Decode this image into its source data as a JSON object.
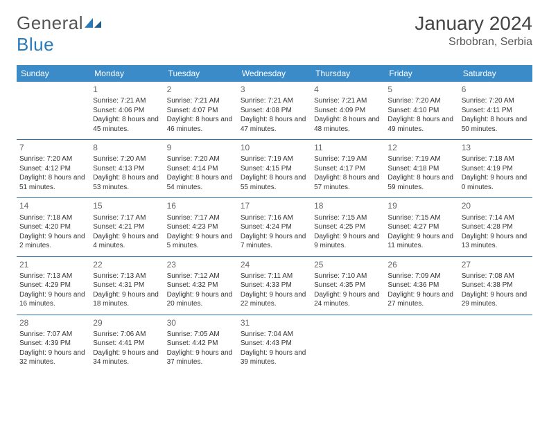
{
  "logo": {
    "word1": "General",
    "word2": "Blue"
  },
  "title": "January 2024",
  "location": "Srbobran, Serbia",
  "colors": {
    "header_bg": "#3b8bc8",
    "header_text": "#ffffff",
    "row_border": "#2a6fa3",
    "logo_gray": "#555555",
    "logo_blue": "#2a7ab8",
    "body_text": "#333333",
    "daynum": "#666666"
  },
  "weekdays": [
    "Sunday",
    "Monday",
    "Tuesday",
    "Wednesday",
    "Thursday",
    "Friday",
    "Saturday"
  ],
  "weeks": [
    [
      null,
      {
        "n": "1",
        "sr": "Sunrise: 7:21 AM",
        "ss": "Sunset: 4:06 PM",
        "dl": "Daylight: 8 hours and 45 minutes."
      },
      {
        "n": "2",
        "sr": "Sunrise: 7:21 AM",
        "ss": "Sunset: 4:07 PM",
        "dl": "Daylight: 8 hours and 46 minutes."
      },
      {
        "n": "3",
        "sr": "Sunrise: 7:21 AM",
        "ss": "Sunset: 4:08 PM",
        "dl": "Daylight: 8 hours and 47 minutes."
      },
      {
        "n": "4",
        "sr": "Sunrise: 7:21 AM",
        "ss": "Sunset: 4:09 PM",
        "dl": "Daylight: 8 hours and 48 minutes."
      },
      {
        "n": "5",
        "sr": "Sunrise: 7:20 AM",
        "ss": "Sunset: 4:10 PM",
        "dl": "Daylight: 8 hours and 49 minutes."
      },
      {
        "n": "6",
        "sr": "Sunrise: 7:20 AM",
        "ss": "Sunset: 4:11 PM",
        "dl": "Daylight: 8 hours and 50 minutes."
      }
    ],
    [
      {
        "n": "7",
        "sr": "Sunrise: 7:20 AM",
        "ss": "Sunset: 4:12 PM",
        "dl": "Daylight: 8 hours and 51 minutes."
      },
      {
        "n": "8",
        "sr": "Sunrise: 7:20 AM",
        "ss": "Sunset: 4:13 PM",
        "dl": "Daylight: 8 hours and 53 minutes."
      },
      {
        "n": "9",
        "sr": "Sunrise: 7:20 AM",
        "ss": "Sunset: 4:14 PM",
        "dl": "Daylight: 8 hours and 54 minutes."
      },
      {
        "n": "10",
        "sr": "Sunrise: 7:19 AM",
        "ss": "Sunset: 4:15 PM",
        "dl": "Daylight: 8 hours and 55 minutes."
      },
      {
        "n": "11",
        "sr": "Sunrise: 7:19 AM",
        "ss": "Sunset: 4:17 PM",
        "dl": "Daylight: 8 hours and 57 minutes."
      },
      {
        "n": "12",
        "sr": "Sunrise: 7:19 AM",
        "ss": "Sunset: 4:18 PM",
        "dl": "Daylight: 8 hours and 59 minutes."
      },
      {
        "n": "13",
        "sr": "Sunrise: 7:18 AM",
        "ss": "Sunset: 4:19 PM",
        "dl": "Daylight: 9 hours and 0 minutes."
      }
    ],
    [
      {
        "n": "14",
        "sr": "Sunrise: 7:18 AM",
        "ss": "Sunset: 4:20 PM",
        "dl": "Daylight: 9 hours and 2 minutes."
      },
      {
        "n": "15",
        "sr": "Sunrise: 7:17 AM",
        "ss": "Sunset: 4:21 PM",
        "dl": "Daylight: 9 hours and 4 minutes."
      },
      {
        "n": "16",
        "sr": "Sunrise: 7:17 AM",
        "ss": "Sunset: 4:23 PM",
        "dl": "Daylight: 9 hours and 5 minutes."
      },
      {
        "n": "17",
        "sr": "Sunrise: 7:16 AM",
        "ss": "Sunset: 4:24 PM",
        "dl": "Daylight: 9 hours and 7 minutes."
      },
      {
        "n": "18",
        "sr": "Sunrise: 7:15 AM",
        "ss": "Sunset: 4:25 PM",
        "dl": "Daylight: 9 hours and 9 minutes."
      },
      {
        "n": "19",
        "sr": "Sunrise: 7:15 AM",
        "ss": "Sunset: 4:27 PM",
        "dl": "Daylight: 9 hours and 11 minutes."
      },
      {
        "n": "20",
        "sr": "Sunrise: 7:14 AM",
        "ss": "Sunset: 4:28 PM",
        "dl": "Daylight: 9 hours and 13 minutes."
      }
    ],
    [
      {
        "n": "21",
        "sr": "Sunrise: 7:13 AM",
        "ss": "Sunset: 4:29 PM",
        "dl": "Daylight: 9 hours and 16 minutes."
      },
      {
        "n": "22",
        "sr": "Sunrise: 7:13 AM",
        "ss": "Sunset: 4:31 PM",
        "dl": "Daylight: 9 hours and 18 minutes."
      },
      {
        "n": "23",
        "sr": "Sunrise: 7:12 AM",
        "ss": "Sunset: 4:32 PM",
        "dl": "Daylight: 9 hours and 20 minutes."
      },
      {
        "n": "24",
        "sr": "Sunrise: 7:11 AM",
        "ss": "Sunset: 4:33 PM",
        "dl": "Daylight: 9 hours and 22 minutes."
      },
      {
        "n": "25",
        "sr": "Sunrise: 7:10 AM",
        "ss": "Sunset: 4:35 PM",
        "dl": "Daylight: 9 hours and 24 minutes."
      },
      {
        "n": "26",
        "sr": "Sunrise: 7:09 AM",
        "ss": "Sunset: 4:36 PM",
        "dl": "Daylight: 9 hours and 27 minutes."
      },
      {
        "n": "27",
        "sr": "Sunrise: 7:08 AM",
        "ss": "Sunset: 4:38 PM",
        "dl": "Daylight: 9 hours and 29 minutes."
      }
    ],
    [
      {
        "n": "28",
        "sr": "Sunrise: 7:07 AM",
        "ss": "Sunset: 4:39 PM",
        "dl": "Daylight: 9 hours and 32 minutes."
      },
      {
        "n": "29",
        "sr": "Sunrise: 7:06 AM",
        "ss": "Sunset: 4:41 PM",
        "dl": "Daylight: 9 hours and 34 minutes."
      },
      {
        "n": "30",
        "sr": "Sunrise: 7:05 AM",
        "ss": "Sunset: 4:42 PM",
        "dl": "Daylight: 9 hours and 37 minutes."
      },
      {
        "n": "31",
        "sr": "Sunrise: 7:04 AM",
        "ss": "Sunset: 4:43 PM",
        "dl": "Daylight: 9 hours and 39 minutes."
      },
      null,
      null,
      null
    ]
  ]
}
